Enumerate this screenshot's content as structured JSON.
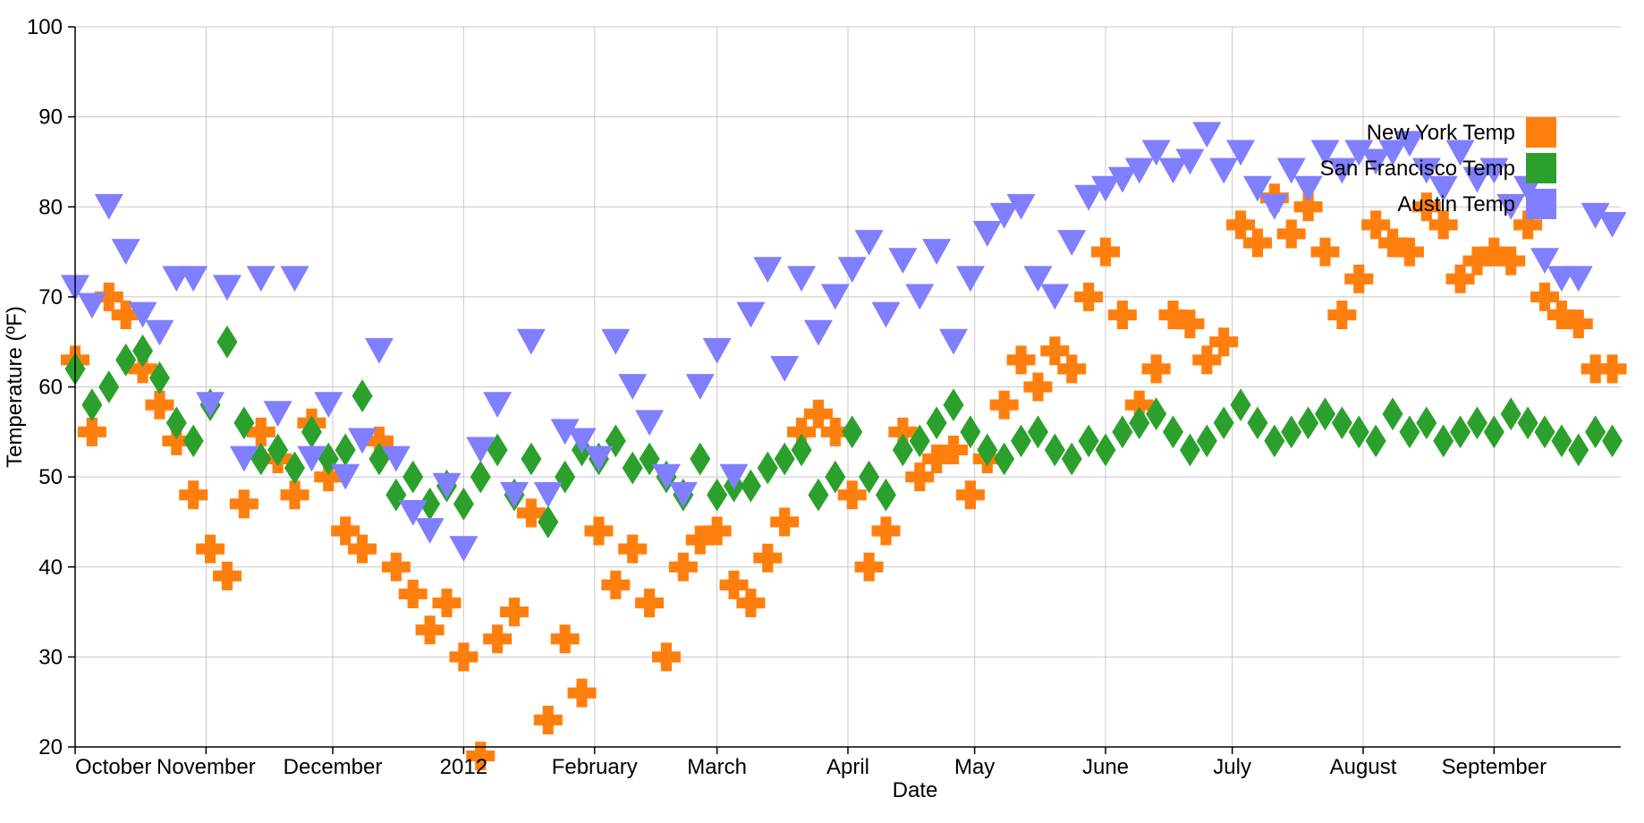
{
  "chart_data": {
    "type": "scatter",
    "title": "",
    "xlabel": "Date",
    "ylabel": "Temperature (ºF)",
    "xlim": [
      "2011-10-01",
      "2012-09-30"
    ],
    "ylim": [
      20,
      100
    ],
    "yticks": [
      20,
      30,
      40,
      50,
      60,
      70,
      80,
      90,
      100
    ],
    "xticks": [
      {
        "date": "2011-10-01",
        "label": "October"
      },
      {
        "date": "2011-11-01",
        "label": "November"
      },
      {
        "date": "2011-12-01",
        "label": "December"
      },
      {
        "date": "2012-01-01",
        "label": "2012"
      },
      {
        "date": "2012-02-01",
        "label": "February"
      },
      {
        "date": "2012-03-01",
        "label": "March"
      },
      {
        "date": "2012-04-01",
        "label": "April"
      },
      {
        "date": "2012-05-01",
        "label": "May"
      },
      {
        "date": "2012-06-01",
        "label": "June"
      },
      {
        "date": "2012-07-01",
        "label": "July"
      },
      {
        "date": "2012-08-01",
        "label": "August"
      },
      {
        "date": "2012-09-01",
        "label": "September"
      }
    ],
    "grid": true,
    "legend_position": "top-right",
    "x": [
      "2011-10-01",
      "2011-10-05",
      "2011-10-09",
      "2011-10-13",
      "2011-10-17",
      "2011-10-21",
      "2011-10-25",
      "2011-10-29",
      "2011-11-02",
      "2011-11-06",
      "2011-11-10",
      "2011-11-14",
      "2011-11-18",
      "2011-11-22",
      "2011-11-26",
      "2011-11-30",
      "2011-12-04",
      "2011-12-08",
      "2011-12-12",
      "2011-12-16",
      "2011-12-20",
      "2011-12-24",
      "2011-12-28",
      "2012-01-01",
      "2012-01-05",
      "2012-01-09",
      "2012-01-13",
      "2012-01-17",
      "2012-01-21",
      "2012-01-25",
      "2012-01-29",
      "2012-02-02",
      "2012-02-06",
      "2012-02-10",
      "2012-02-14",
      "2012-02-18",
      "2012-02-22",
      "2012-02-26",
      "2012-03-01",
      "2012-03-05",
      "2012-03-09",
      "2012-03-13",
      "2012-03-17",
      "2012-03-21",
      "2012-03-25",
      "2012-03-29",
      "2012-04-02",
      "2012-04-06",
      "2012-04-10",
      "2012-04-14",
      "2012-04-18",
      "2012-04-22",
      "2012-04-26",
      "2012-04-30",
      "2012-05-04",
      "2012-05-08",
      "2012-05-12",
      "2012-05-16",
      "2012-05-20",
      "2012-05-24",
      "2012-05-28",
      "2012-06-01",
      "2012-06-05",
      "2012-06-09",
      "2012-06-13",
      "2012-06-17",
      "2012-06-21",
      "2012-06-25",
      "2012-06-29",
      "2012-07-03",
      "2012-07-07",
      "2012-07-11",
      "2012-07-15",
      "2012-07-19",
      "2012-07-23",
      "2012-07-27",
      "2012-07-31",
      "2012-08-04",
      "2012-08-08",
      "2012-08-12",
      "2012-08-16",
      "2012-08-20",
      "2012-08-24",
      "2012-08-28",
      "2012-09-01",
      "2012-09-05",
      "2012-09-09",
      "2012-09-13",
      "2012-09-17",
      "2012-09-21",
      "2012-09-25",
      "2012-09-29"
    ],
    "series": [
      {
        "name": "New York Temp",
        "color": "#ff7f0e",
        "marker": "cross",
        "values": [
          63,
          55,
          70,
          68,
          62,
          58,
          54,
          48,
          42,
          39,
          47,
          55,
          52,
          48,
          56,
          50,
          44,
          42,
          54,
          40,
          37,
          33,
          36,
          30,
          19,
          32,
          35,
          46,
          23,
          32,
          26,
          44,
          38,
          42,
          36,
          30,
          40,
          43,
          44,
          38,
          36,
          41,
          45,
          55,
          57,
          55,
          48,
          40,
          44,
          55,
          50,
          52,
          53,
          48,
          52,
          58,
          63,
          60,
          64,
          62,
          70,
          75,
          68,
          58,
          62,
          68,
          67,
          63,
          65,
          78,
          76,
          81,
          77,
          80,
          75,
          68,
          72,
          78,
          76,
          75,
          80,
          78,
          72,
          74,
          75,
          74,
          78,
          70,
          68,
          67,
          62,
          62
        ]
      },
      {
        "name": "San Francisco Temp",
        "color": "#2ca02c",
        "marker": "diamond",
        "values": [
          62,
          58,
          60,
          63,
          64,
          61,
          56,
          54,
          58,
          65,
          56,
          52,
          53,
          51,
          55,
          52,
          53,
          59,
          52,
          48,
          50,
          47,
          49,
          47,
          50,
          53,
          48,
          52,
          45,
          50,
          53,
          52,
          54,
          51,
          52,
          50,
          48,
          52,
          48,
          49,
          49,
          51,
          52,
          53,
          48,
          50,
          55,
          50,
          48,
          53,
          54,
          56,
          58,
          55,
          53,
          52,
          54,
          55,
          53,
          52,
          54,
          53,
          55,
          56,
          57,
          55,
          53,
          54,
          56,
          58,
          56,
          54,
          55,
          56,
          57,
          56,
          55,
          54,
          57,
          55,
          56,
          54,
          55,
          56,
          55,
          57,
          56,
          55,
          54,
          53,
          55,
          54
        ]
      },
      {
        "name": "Austin Temp",
        "color": "#7f7fff",
        "marker": "triangle-down",
        "values": [
          71,
          69,
          80,
          75,
          68,
          66,
          72,
          72,
          58,
          71,
          52,
          72,
          57,
          72,
          52,
          58,
          50,
          54,
          64,
          52,
          46,
          44,
          49,
          42,
          53,
          58,
          48,
          65,
          48,
          55,
          54,
          52,
          65,
          60,
          56,
          50,
          48,
          60,
          64,
          50,
          68,
          73,
          62,
          72,
          66,
          70,
          73,
          76,
          68,
          74,
          70,
          75,
          65,
          72,
          77,
          79,
          80,
          72,
          70,
          76,
          81,
          82,
          83,
          84,
          86,
          84,
          85,
          88,
          84,
          86,
          82,
          80,
          84,
          82,
          86,
          84,
          86,
          85,
          86,
          87,
          84,
          82,
          86,
          83,
          84,
          80,
          82,
          74,
          72,
          72,
          79,
          78
        ]
      }
    ]
  }
}
